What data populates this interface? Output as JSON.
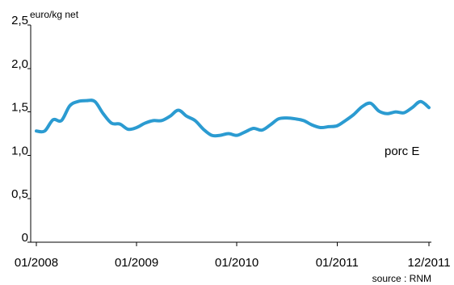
{
  "chart_data": {
    "type": "line",
    "ylabel": "euro/kg net",
    "ylim": [
      0,
      2.5
    ],
    "yticks": [
      "0",
      "0,5",
      "1,0",
      "1,5",
      "2,0",
      "2,5"
    ],
    "ytick_values": [
      0,
      0.5,
      1.0,
      1.5,
      2.0,
      2.5
    ],
    "xlim": [
      "2008-01",
      "2011-12"
    ],
    "xticks": [
      "01/2008",
      "01/2009",
      "01/2010",
      "01/2011",
      "12/2011"
    ],
    "xtick_values": [
      "2008-01",
      "2009-01",
      "2010-01",
      "2011-01",
      "2011-12"
    ],
    "grid": false,
    "series": [
      {
        "name": "porc E",
        "color": "#2b9bd1",
        "x": [
          "2008-01",
          "2008-02",
          "2008-03",
          "2008-04",
          "2008-05",
          "2008-06",
          "2008-07",
          "2008-08",
          "2008-09",
          "2008-10",
          "2008-11",
          "2008-12",
          "2009-01",
          "2009-02",
          "2009-03",
          "2009-04",
          "2009-05",
          "2009-06",
          "2009-07",
          "2009-08",
          "2009-09",
          "2009-10",
          "2009-11",
          "2009-12",
          "2010-01",
          "2010-02",
          "2010-03",
          "2010-04",
          "2010-05",
          "2010-06",
          "2010-07",
          "2010-08",
          "2010-09",
          "2010-10",
          "2010-11",
          "2010-12",
          "2011-01",
          "2011-02",
          "2011-03",
          "2011-04",
          "2011-05",
          "2011-06",
          "2011-07",
          "2011-08",
          "2011-09",
          "2011-10",
          "2011-11",
          "2011-12"
        ],
        "values": [
          1.28,
          1.28,
          1.41,
          1.4,
          1.57,
          1.62,
          1.63,
          1.62,
          1.48,
          1.37,
          1.36,
          1.3,
          1.32,
          1.37,
          1.4,
          1.4,
          1.45,
          1.52,
          1.45,
          1.4,
          1.3,
          1.23,
          1.23,
          1.25,
          1.23,
          1.27,
          1.31,
          1.29,
          1.35,
          1.42,
          1.43,
          1.42,
          1.4,
          1.35,
          1.32,
          1.33,
          1.34,
          1.4,
          1.47,
          1.56,
          1.6,
          1.51,
          1.48,
          1.5,
          1.49,
          1.55,
          1.62,
          1.55
        ]
      }
    ],
    "annotations": [
      "porc E"
    ],
    "source": "source : RNM"
  }
}
